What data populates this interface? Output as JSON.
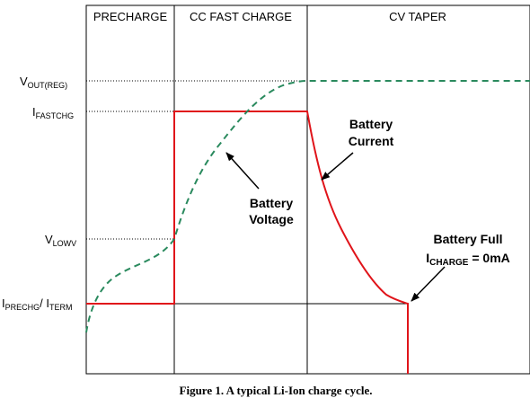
{
  "phases": {
    "precharge": "PRECHARGE",
    "cc": "CC FAST CHARGE",
    "cv": "CV TAPER"
  },
  "levels": {
    "vout": {
      "main": "V",
      "sub": "OUT(REG)"
    },
    "ifast": {
      "main": "I",
      "sub": "FASTCHG"
    },
    "vlow": {
      "main": "V",
      "sub": "LOWV"
    },
    "iprechg": {
      "main": "I",
      "sub": "PRECHG",
      "sep": "/ ",
      "main2": "I",
      "sub2": "TERM"
    }
  },
  "annotations": {
    "voltage": [
      "Battery",
      "Voltage"
    ],
    "current": [
      "Battery",
      "Current"
    ],
    "full": {
      "line1": "Battery Full",
      "main": "I",
      "sub": "CHARGE",
      "rest": " = 0mA"
    }
  },
  "caption": "Figure 1. A typical Li-Ion charge cycle.",
  "colors": {
    "current": "#e0141a",
    "voltage": "#2a8a5e",
    "frame": "#000000"
  }
}
